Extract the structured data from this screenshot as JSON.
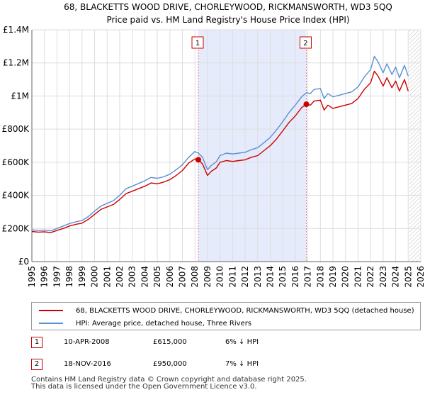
{
  "chart_data": {
    "type": "line",
    "title": "68, BLACKETTS WOOD DRIVE, CHORLEYWOOD, RICKMANSWORTH, WD3 5QQ",
    "subtitle": "Price paid vs. HM Land Registry's House Price Index (HPI)",
    "xlim": [
      1995,
      2026
    ],
    "ylim": [
      0,
      1400000
    ],
    "x_ticks": [
      "1995",
      "1996",
      "1997",
      "1998",
      "1999",
      "2000",
      "2001",
      "2002",
      "2003",
      "2004",
      "2005",
      "2006",
      "2007",
      "2008",
      "2009",
      "2010",
      "2011",
      "2012",
      "2013",
      "2014",
      "2015",
      "2016",
      "2017",
      "2018",
      "2019",
      "2020",
      "2021",
      "2022",
      "2023",
      "2024",
      "2025",
      "2026"
    ],
    "y_ticks": [
      {
        "value": 0,
        "label": "£0"
      },
      {
        "value": 200000,
        "label": "£200K"
      },
      {
        "value": 400000,
        "label": "£400K"
      },
      {
        "value": 600000,
        "label": "£600K"
      },
      {
        "value": 800000,
        "label": "£800K"
      },
      {
        "value": 1000000,
        "label": "£1M"
      },
      {
        "value": 1200000,
        "label": "£1.2M"
      },
      {
        "value": 1400000,
        "label": "£1.4M"
      }
    ],
    "grid": true,
    "shaded_region": {
      "from": 2008.27,
      "to": 2016.88
    },
    "future_hatch_from": 2025.1,
    "series": [
      {
        "name": "68, BLACKETTS WOOD DRIVE, CHORLEYWOOD, RICKMANSWORTH, WD3 5QQ (detached house)",
        "color": "#cc0000",
        "points": [
          [
            1995.0,
            182000
          ],
          [
            1995.5,
            178000
          ],
          [
            1996.0,
            180000
          ],
          [
            1996.5,
            175000
          ],
          [
            1997.0,
            188000
          ],
          [
            1997.5,
            200000
          ],
          [
            1998.0,
            215000
          ],
          [
            1998.5,
            225000
          ],
          [
            1999.0,
            232000
          ],
          [
            1999.5,
            255000
          ],
          [
            2000.0,
            285000
          ],
          [
            2000.5,
            315000
          ],
          [
            2001.0,
            330000
          ],
          [
            2001.5,
            345000
          ],
          [
            2002.0,
            375000
          ],
          [
            2002.5,
            410000
          ],
          [
            2003.0,
            425000
          ],
          [
            2003.5,
            440000
          ],
          [
            2004.0,
            455000
          ],
          [
            2004.5,
            475000
          ],
          [
            2005.0,
            470000
          ],
          [
            2005.5,
            480000
          ],
          [
            2006.0,
            495000
          ],
          [
            2006.5,
            520000
          ],
          [
            2007.0,
            550000
          ],
          [
            2007.5,
            595000
          ],
          [
            2008.0,
            620000
          ],
          [
            2008.27,
            615000
          ],
          [
            2008.6,
            590000
          ],
          [
            2009.0,
            520000
          ],
          [
            2009.3,
            545000
          ],
          [
            2009.7,
            565000
          ],
          [
            2010.0,
            600000
          ],
          [
            2010.5,
            610000
          ],
          [
            2011.0,
            605000
          ],
          [
            2011.5,
            610000
          ],
          [
            2012.0,
            615000
          ],
          [
            2012.5,
            630000
          ],
          [
            2013.0,
            640000
          ],
          [
            2013.5,
            670000
          ],
          [
            2014.0,
            700000
          ],
          [
            2014.5,
            740000
          ],
          [
            2015.0,
            790000
          ],
          [
            2015.5,
            840000
          ],
          [
            2016.0,
            880000
          ],
          [
            2016.5,
            930000
          ],
          [
            2016.88,
            950000
          ],
          [
            2017.2,
            945000
          ],
          [
            2017.5,
            970000
          ],
          [
            2018.0,
            975000
          ],
          [
            2018.3,
            915000
          ],
          [
            2018.6,
            945000
          ],
          [
            2019.0,
            925000
          ],
          [
            2019.5,
            935000
          ],
          [
            2020.0,
            945000
          ],
          [
            2020.5,
            955000
          ],
          [
            2021.0,
            985000
          ],
          [
            2021.5,
            1040000
          ],
          [
            2022.0,
            1080000
          ],
          [
            2022.3,
            1150000
          ],
          [
            2022.6,
            1120000
          ],
          [
            2023.0,
            1060000
          ],
          [
            2023.3,
            1110000
          ],
          [
            2023.7,
            1050000
          ],
          [
            2024.0,
            1090000
          ],
          [
            2024.3,
            1030000
          ],
          [
            2024.7,
            1100000
          ],
          [
            2025.0,
            1030000
          ]
        ]
      },
      {
        "name": "HPI: Average price, detached house, Three Rivers",
        "color": "#5b8fd4",
        "points": [
          [
            1995.0,
            192000
          ],
          [
            1995.5,
            188000
          ],
          [
            1996.0,
            190000
          ],
          [
            1996.5,
            186000
          ],
          [
            1997.0,
            200000
          ],
          [
            1997.5,
            215000
          ],
          [
            1998.0,
            230000
          ],
          [
            1998.5,
            240000
          ],
          [
            1999.0,
            248000
          ],
          [
            1999.5,
            272000
          ],
          [
            2000.0,
            305000
          ],
          [
            2000.5,
            335000
          ],
          [
            2001.0,
            352000
          ],
          [
            2001.5,
            368000
          ],
          [
            2002.0,
            400000
          ],
          [
            2002.5,
            440000
          ],
          [
            2003.0,
            455000
          ],
          [
            2003.5,
            472000
          ],
          [
            2004.0,
            488000
          ],
          [
            2004.5,
            508000
          ],
          [
            2005.0,
            503000
          ],
          [
            2005.5,
            512000
          ],
          [
            2006.0,
            528000
          ],
          [
            2006.5,
            555000
          ],
          [
            2007.0,
            585000
          ],
          [
            2007.5,
            630000
          ],
          [
            2008.0,
            665000
          ],
          [
            2008.27,
            655000
          ],
          [
            2008.6,
            630000
          ],
          [
            2009.0,
            555000
          ],
          [
            2009.3,
            580000
          ],
          [
            2009.7,
            603000
          ],
          [
            2010.0,
            640000
          ],
          [
            2010.5,
            655000
          ],
          [
            2011.0,
            650000
          ],
          [
            2011.5,
            655000
          ],
          [
            2012.0,
            660000
          ],
          [
            2012.5,
            676000
          ],
          [
            2013.0,
            688000
          ],
          [
            2013.5,
            718000
          ],
          [
            2014.0,
            750000
          ],
          [
            2014.5,
            795000
          ],
          [
            2015.0,
            845000
          ],
          [
            2015.5,
            900000
          ],
          [
            2016.0,
            945000
          ],
          [
            2016.5,
            995000
          ],
          [
            2016.88,
            1020000
          ],
          [
            2017.2,
            1015000
          ],
          [
            2017.5,
            1040000
          ],
          [
            2018.0,
            1045000
          ],
          [
            2018.3,
            985000
          ],
          [
            2018.6,
            1015000
          ],
          [
            2019.0,
            995000
          ],
          [
            2019.5,
            1005000
          ],
          [
            2020.0,
            1015000
          ],
          [
            2020.5,
            1025000
          ],
          [
            2021.0,
            1055000
          ],
          [
            2021.5,
            1115000
          ],
          [
            2022.0,
            1160000
          ],
          [
            2022.3,
            1240000
          ],
          [
            2022.6,
            1205000
          ],
          [
            2023.0,
            1140000
          ],
          [
            2023.3,
            1195000
          ],
          [
            2023.7,
            1130000
          ],
          [
            2024.0,
            1175000
          ],
          [
            2024.3,
            1110000
          ],
          [
            2024.7,
            1185000
          ],
          [
            2025.0,
            1120000
          ]
        ]
      }
    ],
    "sales": [
      {
        "label": "1",
        "x": 2008.27,
        "price": 615000
      },
      {
        "label": "2",
        "x": 2016.88,
        "price": 950000
      }
    ]
  },
  "legend": {
    "property": "68, BLACKETTS WOOD DRIVE, CHORLEYWOOD, RICKMANSWORTH, WD3 5QQ (detached house)",
    "hpi": "HPI: Average price, detached house, Three Rivers"
  },
  "transactions": [
    {
      "num": "1",
      "date": "10-APR-2008",
      "price": "£615,000",
      "hpi": "6% ↓ HPI"
    },
    {
      "num": "2",
      "date": "18-NOV-2016",
      "price": "£950,000",
      "hpi": "7% ↓ HPI"
    }
  ],
  "footer": {
    "line1": "Contains HM Land Registry data © Crown copyright and database right 2025.",
    "line2": "This data is licensed under the Open Government Licence v3.0."
  },
  "colors": {
    "property": "#cc0000",
    "hpi": "#5b8fd4",
    "shade": "#e6ebfb"
  }
}
